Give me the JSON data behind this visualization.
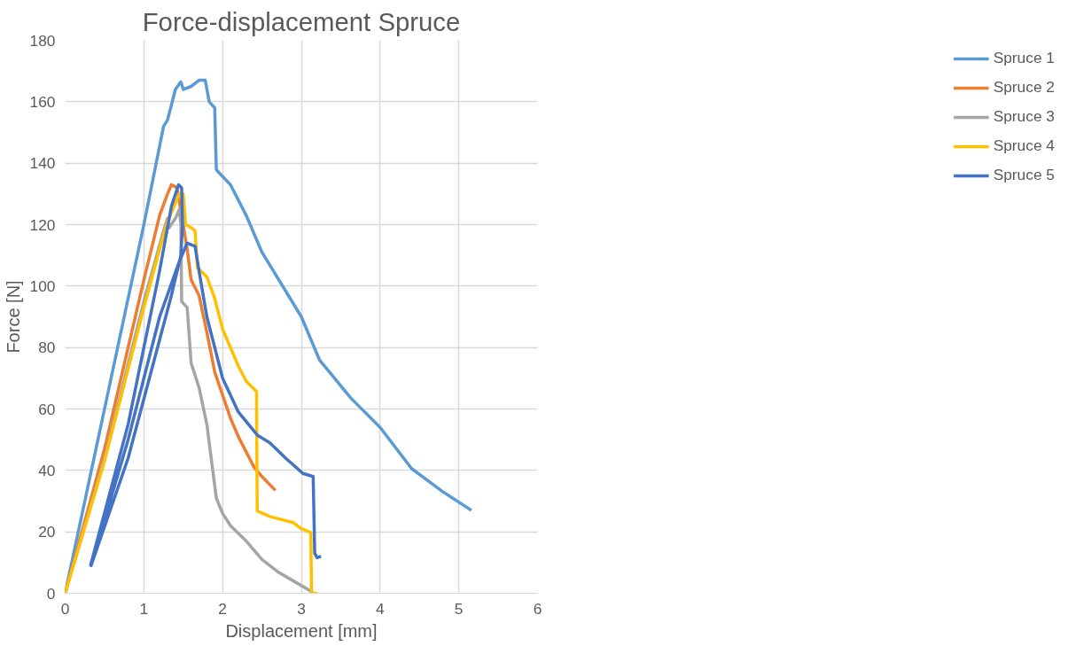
{
  "chart_data": {
    "type": "line",
    "title": "Force-displacement Spruce",
    "xlabel": "Displacement [mm]",
    "ylabel": "Force [N]",
    "xlim": [
      0,
      6
    ],
    "xticks": [
      0,
      1,
      2,
      3,
      4,
      5,
      6
    ],
    "ylim": [
      0,
      180
    ],
    "yticks": [
      0,
      20,
      40,
      60,
      80,
      100,
      120,
      140,
      160,
      180
    ],
    "grid": true,
    "legend": "right",
    "marker": "none",
    "line_style": "solid",
    "series": [
      {
        "name": "Spruce 1",
        "color": "#5b9bd5",
        "x": [
          0,
          0.5,
          1.0,
          1.25,
          1.3,
          1.4,
          1.47,
          1.5,
          1.6,
          1.7,
          1.78,
          1.83,
          1.9,
          1.92,
          1.95,
          2.1,
          2.3,
          2.5,
          2.81,
          3.0,
          3.23,
          3.63,
          4.0,
          4.4,
          4.8,
          5.16
        ],
        "values": [
          0,
          60,
          120,
          152,
          154,
          164,
          166.5,
          164,
          165,
          167,
          167,
          160,
          158,
          138,
          137,
          133,
          123,
          111,
          98,
          90,
          76,
          63.5,
          54,
          40.6,
          33,
          27
        ]
      },
      {
        "name": "Spruce 2",
        "color": "#ed7d31",
        "x": [
          0,
          0.5,
          1.0,
          1.2,
          1.3,
          1.35,
          1.42,
          1.5,
          1.55,
          1.6,
          1.7,
          1.8,
          1.9,
          2.02,
          2.1,
          2.2,
          2.4,
          2.5,
          2.67
        ],
        "values": [
          0,
          47,
          102,
          123,
          130,
          133,
          132,
          120,
          112,
          102,
          97,
          85,
          72,
          63,
          57,
          51,
          41,
          38,
          33.5
        ]
      },
      {
        "name": "Spruce 3",
        "color": "#a5a5a5",
        "x": [
          0,
          0.5,
          1.0,
          1.25,
          1.3,
          1.32,
          1.4,
          1.45,
          1.47,
          1.48,
          1.55,
          1.6,
          1.7,
          1.8,
          1.92,
          2.0,
          2.1,
          2.3,
          2.5,
          2.7,
          2.9,
          3.1,
          3.15
        ],
        "values": [
          0,
          44,
          95,
          118,
          122,
          119,
          122,
          125,
          120,
          95,
          93,
          75,
          67,
          55,
          31,
          26,
          22,
          17,
          11,
          7,
          4,
          1,
          0
        ]
      },
      {
        "name": "Spruce 4",
        "color": "#ffc000",
        "x": [
          0,
          0.5,
          1.0,
          1.2,
          1.3,
          1.4,
          1.45,
          1.5,
          1.53,
          1.6,
          1.65,
          1.68,
          1.8,
          1.9,
          2.0,
          2.2,
          2.3,
          2.43,
          2.44,
          2.6,
          2.9,
          3.0,
          3.12,
          3.13,
          3.21
        ],
        "values": [
          0,
          43,
          93,
          112,
          121,
          127,
          130,
          130,
          120,
          119,
          118,
          106,
          103,
          96,
          86,
          74,
          69,
          65.7,
          26.8,
          25,
          23,
          21,
          19.8,
          0,
          0
        ]
      },
      {
        "name": "Spruce 5",
        "color": "#4472c4",
        "x": [
          0.32,
          0.8,
          1.2,
          1.35,
          1.44,
          1.48,
          1.49,
          1.47,
          1.35,
          0.8,
          0.33,
          0.8,
          1.2,
          1.45,
          1.55,
          1.65,
          1.7,
          1.8,
          1.9,
          2.0,
          2.2,
          2.44,
          2.6,
          2.8,
          3.02,
          3.15,
          3.17,
          3.2,
          3.25
        ],
        "values": [
          8.8,
          55,
          105,
          126,
          133,
          132,
          120,
          110,
          97,
          44,
          9,
          50,
          90,
          108,
          114,
          113,
          105,
          90,
          80,
          70,
          59,
          51.5,
          49,
          44,
          39,
          38,
          13,
          11.6,
          12
        ]
      }
    ]
  }
}
